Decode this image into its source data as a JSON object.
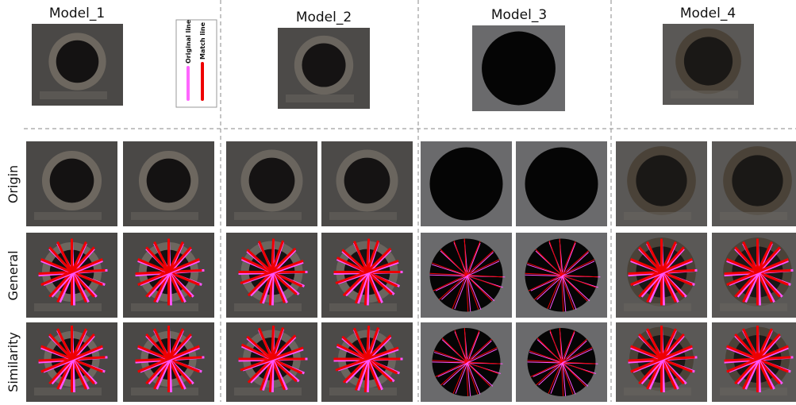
{
  "header": {
    "models": [
      "Model_1",
      "Model_2",
      "Model_3",
      "Model_4"
    ]
  },
  "legend": {
    "original": "Original line",
    "match": "Match line"
  },
  "rows": [
    "Origin",
    "General",
    "Similarity"
  ]
}
